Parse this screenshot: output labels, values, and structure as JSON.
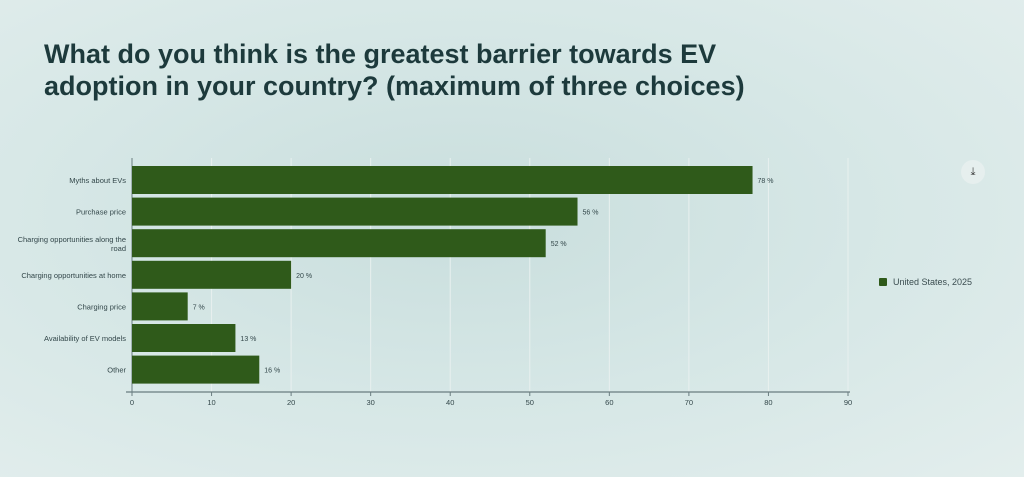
{
  "title": "What do you think is the greatest barrier towards EV adoption in your country? (maximum of three choices)",
  "download_icon": "download-icon",
  "chart_data": {
    "type": "bar",
    "orientation": "horizontal",
    "categories": [
      "Myths about EVs",
      "Purchase price",
      "Charging opportunities along the road",
      "Charging opportunities at home",
      "Charging price",
      "Availability of EV models",
      "Other"
    ],
    "series": [
      {
        "name": "United States, 2025",
        "values": [
          78,
          56,
          52,
          20,
          7,
          13,
          16
        ],
        "color": "#2f5a1a"
      }
    ],
    "data_labels": [
      "78 %",
      "56 %",
      "52 %",
      "20 %",
      "7 %",
      "13 %",
      "16 %"
    ],
    "xlim": [
      0,
      90
    ],
    "xticks": [
      0,
      10,
      20,
      30,
      40,
      50,
      60,
      70,
      80,
      90
    ],
    "grid": true,
    "legend_position": "right"
  }
}
